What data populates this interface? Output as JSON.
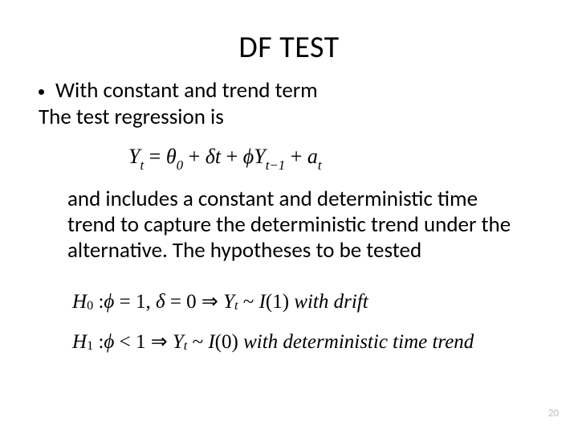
{
  "title": "DF TEST",
  "bullet": "With constant and trend term",
  "line2": "The test regression is",
  "eq1": {
    "lhs_var": "Y",
    "lhs_sub": "t",
    "theta": "θ",
    "theta_sub": "0",
    "delta": "δ",
    "t": "t",
    "phi": "ϕ",
    "Y2": "Y",
    "Y2_sub": "t−1",
    "a": "a",
    "a_sub": "t"
  },
  "para": "and includes a constant and deterministic time trend to capture the deterministic trend under the alternative. The hypotheses to be tested",
  "h0": {
    "H": "H",
    "sub": "0",
    "phi": "ϕ",
    "eq": "= 1,",
    "delta": "δ",
    "zero": "= 0 ⇒",
    "Y": "Y",
    "Ysub": "t",
    "tilde": "~",
    "I": "I",
    "order": "(1)",
    "tail": "with drift"
  },
  "h1": {
    "H": "H",
    "sub": "1",
    "phi": "ϕ",
    "lt": "< 1 ⇒",
    "Y": "Y",
    "Ysub": "t",
    "tilde": "~",
    "I": "I",
    "order": "(0)",
    "tail": "with deterministic time trend"
  },
  "pagenum": "20"
}
